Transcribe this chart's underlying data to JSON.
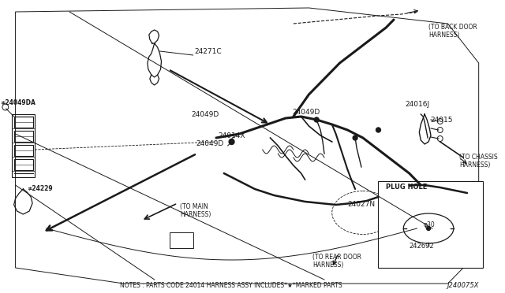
{
  "bg_color": "#ffffff",
  "lc": "#1a1a1a",
  "tc": "#1a1a1a",
  "footnote": "NOTES : PARTS CODE 24014 HARNESS ASSY INCLUDES*★*MARKED PARTS",
  "diagram_id": "J240075X",
  "plug_hole_label": "PLUG HOLE",
  "phi30": "φ30",
  "part_242692": "242692",
  "part_24271C": "24271C",
  "part_24014X": "24014X",
  "part_24049D": "24049D",
  "part_24049DA": "≉24049DA",
  "part_24229": "≉24229",
  "part_24016J": "24016J",
  "part_24015": "24015",
  "part_24027N": "24027N",
  "label_back_door": "(TO BACK DOOR\nHARNESS)",
  "label_chassis": "(TO CHASSIS\nHARNESS)",
  "label_main": "(TO MAIN\nHARNESS)",
  "label_rear_door": "(TO REAR DOOR\nHARNESS)"
}
